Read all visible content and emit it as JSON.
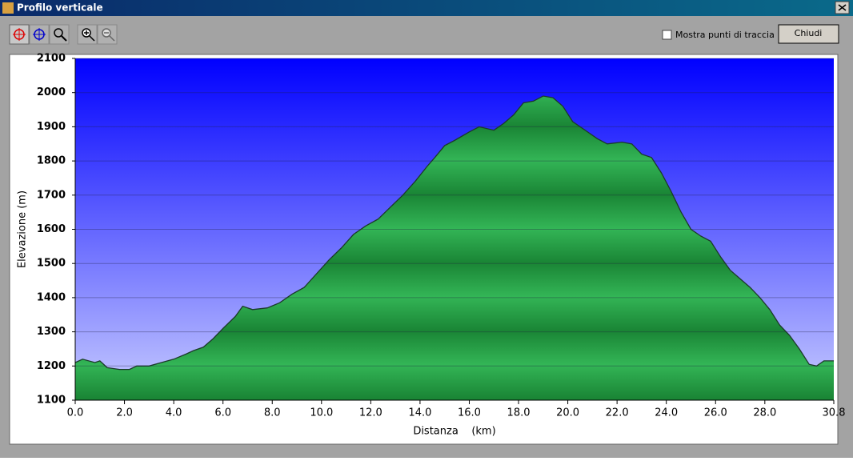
{
  "window": {
    "title": "Profilo verticale",
    "checkbox": "Mostra punti di traccia",
    "button": "Chiudi"
  },
  "chart_data": {
    "type": "area",
    "x_label": "Distanza    (km)",
    "y_label": "Elevazione (m)",
    "x": [
      0.0,
      0.3,
      0.8,
      1.0,
      1.3,
      1.8,
      2.2,
      2.5,
      3.0,
      3.5,
      4.0,
      4.5,
      4.8,
      5.2,
      5.6,
      6.0,
      6.5,
      6.8,
      7.2,
      7.8,
      8.3,
      8.8,
      9.3,
      9.8,
      10.3,
      10.8,
      11.3,
      11.8,
      12.3,
      12.8,
      13.3,
      13.8,
      14.3,
      14.6,
      15.0,
      15.4,
      16.0,
      16.4,
      17.0,
      17.4,
      17.8,
      18.2,
      18.6,
      19.0,
      19.4,
      19.8,
      20.2,
      20.6,
      21.2,
      21.6,
      22.2,
      22.6,
      23.0,
      23.4,
      23.8,
      24.2,
      24.6,
      25.0,
      25.4,
      25.8,
      26.2,
      26.6,
      27.0,
      27.4,
      27.8,
      28.2,
      28.6,
      29.0,
      29.4,
      29.8,
      30.1,
      30.4,
      30.6,
      30.8
    ],
    "values": [
      1210,
      1220,
      1210,
      1215,
      1195,
      1190,
      1190,
      1200,
      1200,
      1210,
      1220,
      1235,
      1245,
      1255,
      1280,
      1310,
      1345,
      1375,
      1365,
      1370,
      1385,
      1410,
      1430,
      1470,
      1510,
      1545,
      1585,
      1610,
      1630,
      1665,
      1700,
      1740,
      1785,
      1810,
      1845,
      1860,
      1885,
      1900,
      1890,
      1910,
      1935,
      1970,
      1975,
      1990,
      1985,
      1960,
      1915,
      1895,
      1865,
      1850,
      1855,
      1850,
      1820,
      1810,
      1765,
      1710,
      1650,
      1600,
      1580,
      1565,
      1520,
      1480,
      1455,
      1430,
      1400,
      1365,
      1320,
      1290,
      1250,
      1205,
      1200,
      1215,
      1215,
      1215
    ],
    "color": "#1f9a40",
    "xlim": [
      0,
      30.8
    ],
    "ylim": [
      1100,
      2100
    ],
    "xticks": [
      {
        "value": 0,
        "label": "0.0"
      },
      {
        "value": 2,
        "label": "2.0"
      },
      {
        "value": 4,
        "label": "4.0"
      },
      {
        "value": 6,
        "label": "6.0"
      },
      {
        "value": 8,
        "label": "8.0"
      },
      {
        "value": 10,
        "label": "10.0"
      },
      {
        "value": 12,
        "label": "12.0"
      },
      {
        "value": 14,
        "label": "14.0"
      },
      {
        "value": 16,
        "label": "16.0"
      },
      {
        "value": 18,
        "label": "18.0"
      },
      {
        "value": 20,
        "label": "20.0"
      },
      {
        "value": 22,
        "label": "22.0"
      },
      {
        "value": 24,
        "label": "24.0"
      },
      {
        "value": 26,
        "label": "26.0"
      },
      {
        "value": 28,
        "label": "28.0"
      },
      30.8
    ],
    "yticks": [
      1100,
      1200,
      1300,
      1400,
      1500,
      1600,
      1700,
      1800,
      1900,
      2000,
      2100
    ],
    "grid": true
  }
}
